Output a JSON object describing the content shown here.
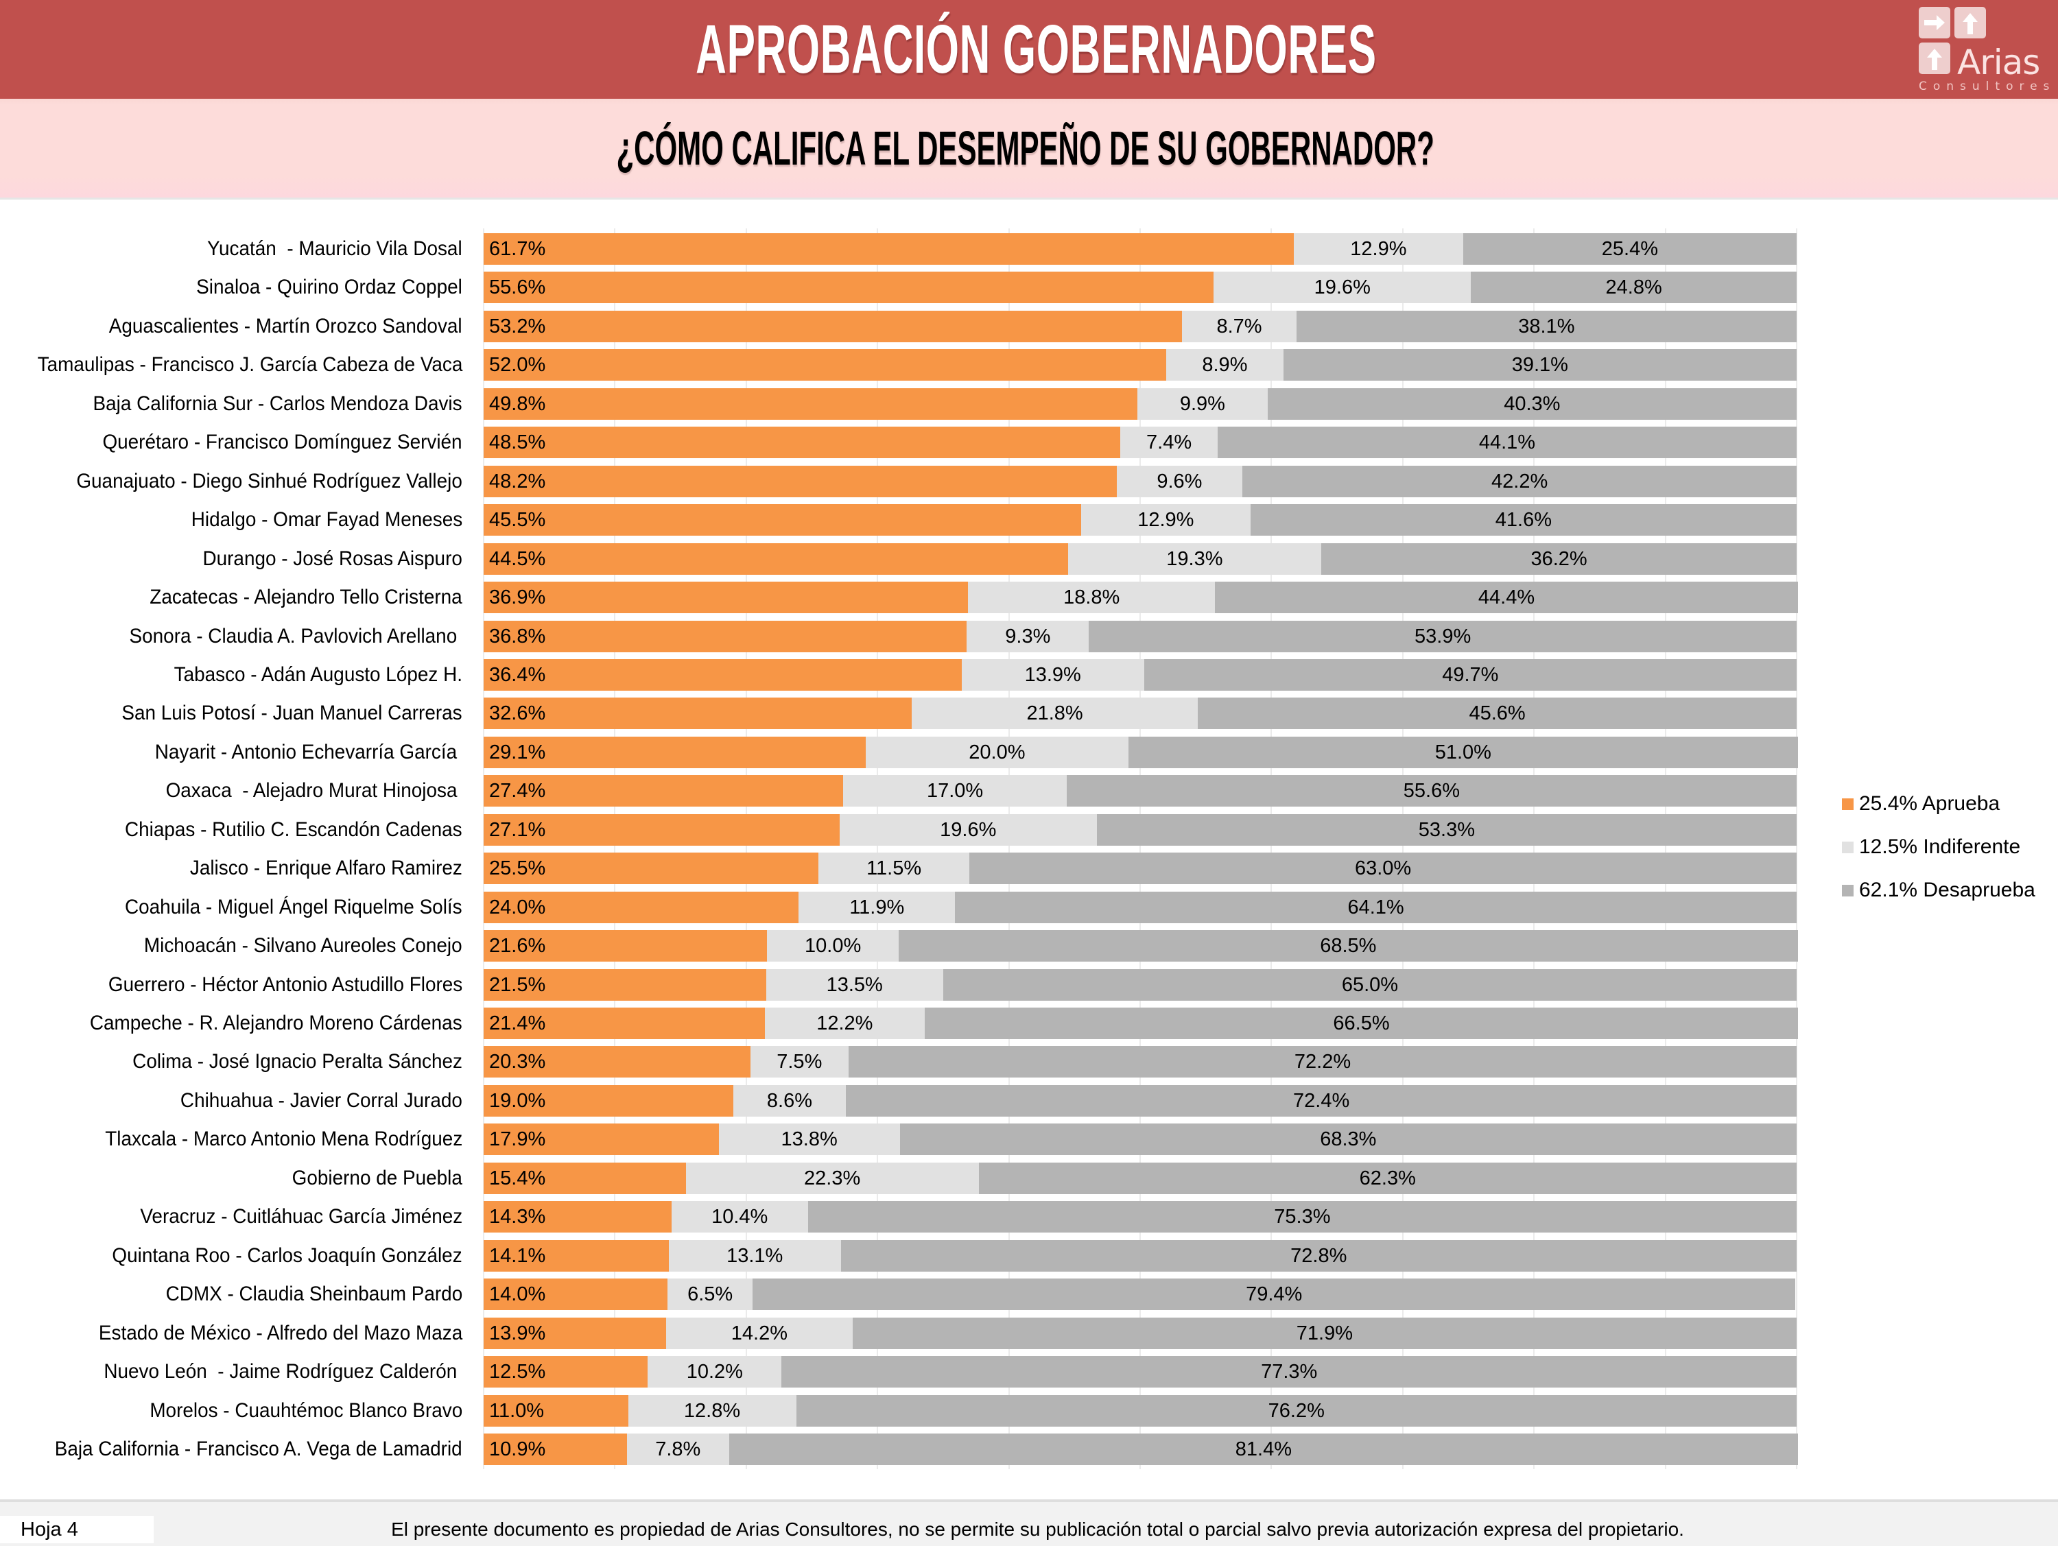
{
  "header": {
    "title": "APROBACIÓN GOBERNADORES",
    "logo": {
      "brand": "Arias",
      "sub": "Consultores"
    }
  },
  "subheader": {
    "question": "¿CÓMO CALIFICA EL DESEMPEÑO DE SU GOBERNADOR?"
  },
  "colors": {
    "header_bg": "#c0504d",
    "subheader_bg": "#fddcda",
    "aprueba": "#f79646",
    "indiferente": "#e1e1e1",
    "desaprueba": "#b4b4b4"
  },
  "chart_data": {
    "type": "bar",
    "orientation": "horizontal",
    "stacked": "100%",
    "title": "¿CÓMO CALIFICA EL DESEMPEÑO DE SU GOBERNADOR?",
    "xlabel": "",
    "ylabel": "",
    "xlim": [
      0,
      100
    ],
    "grid": true,
    "legend_position": "right",
    "categories": [
      "Yucatán  - Mauricio Vila Dosal",
      "Sinaloa - Quirino Ordaz Coppel",
      "Aguascalientes - Martín Orozco Sandoval",
      "Tamaulipas - Francisco J. García Cabeza de Vaca",
      "Baja California Sur - Carlos Mendoza Davis",
      "Querétaro - Francisco Domínguez Servién",
      "Guanajuato - Diego Sinhué Rodríguez Vallejo",
      "Hidalgo - Omar Fayad Meneses",
      "Durango - José Rosas Aispuro",
      "Zacatecas - Alejandro Tello Cristerna",
      "Sonora - Claudia A. Pavlovich Arellano ",
      "Tabasco - Adán Augusto López H.",
      "San Luis Potosí - Juan Manuel Carreras",
      "Nayarit - Antonio Echevarría García ",
      "Oaxaca  - Alejadro Murat Hinojosa ",
      "Chiapas - Rutilio C. Escandón Cadenas",
      "Jalisco - Enrique Alfaro Ramirez",
      "Coahuila - Miguel Ángel Riquelme Solís",
      "Michoacán - Silvano Aureoles Conejo",
      "Guerrero - Héctor Antonio Astudillo Flores",
      "Campeche - R. Alejandro Moreno Cárdenas",
      "Colima - José Ignacio Peralta Sánchez",
      "Chihuahua - Javier Corral Jurado",
      "Tlaxcala - Marco Antonio Mena Rodríguez",
      "Gobierno de Puebla",
      "Veracruz - Cuitláhuac García Jiménez",
      "Quintana Roo - Carlos Joaquín González",
      "CDMX - Claudia Sheinbaum Pardo",
      "Estado de México - Alfredo del Mazo Maza",
      "Nuevo León  - Jaime Rodríguez Calderón ",
      "Morelos - Cuauhtémoc Blanco Bravo",
      "Baja California - Francisco A. Vega de Lamadrid"
    ],
    "series": [
      {
        "name": "Aprueba",
        "legend_label": "25.4% Aprueba",
        "color": "#f79646",
        "values": [
          61.7,
          55.6,
          53.2,
          52.0,
          49.8,
          48.5,
          48.2,
          45.5,
          44.5,
          36.9,
          36.8,
          36.4,
          32.6,
          29.1,
          27.4,
          27.1,
          25.5,
          24.0,
          21.6,
          21.5,
          21.4,
          20.3,
          19.0,
          17.9,
          15.4,
          14.3,
          14.1,
          14.0,
          13.9,
          12.5,
          11.0,
          10.9
        ]
      },
      {
        "name": "Indiferente",
        "legend_label": "12.5% Indiferente",
        "color": "#e1e1e1",
        "values": [
          12.9,
          19.6,
          8.7,
          8.9,
          9.9,
          7.4,
          9.6,
          12.9,
          19.3,
          18.8,
          9.3,
          13.9,
          21.8,
          20.0,
          17.0,
          19.6,
          11.5,
          11.9,
          10.0,
          13.5,
          12.2,
          7.5,
          8.6,
          13.8,
          22.3,
          10.4,
          13.1,
          6.5,
          14.2,
          10.2,
          12.8,
          7.8
        ]
      },
      {
        "name": "Desaprueba",
        "legend_label": "62.1% Desaprueba",
        "color": "#b4b4b4",
        "values": [
          25.4,
          24.8,
          38.1,
          39.1,
          40.3,
          44.1,
          42.2,
          41.6,
          36.2,
          44.4,
          53.9,
          49.7,
          45.6,
          51.0,
          55.6,
          53.3,
          63.0,
          64.1,
          68.5,
          65.0,
          66.5,
          72.2,
          72.4,
          68.3,
          62.3,
          75.3,
          72.8,
          79.4,
          71.9,
          77.3,
          76.2,
          81.4
        ]
      }
    ],
    "value_format": "{v}%"
  },
  "footer": {
    "sheet": "Hoja 4",
    "disclaimer": "El presente documento es propiedad de Arias Consultores, no se permite su publicación total o parcial salvo previa autorización expresa del propietario."
  }
}
